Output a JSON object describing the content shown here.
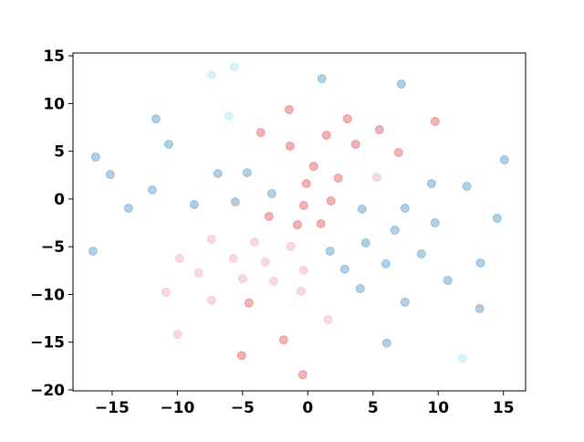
{
  "chart_data": {
    "type": "scatter",
    "xlim": [
      -18,
      16.7
    ],
    "ylim": [
      -20.1,
      15.3
    ],
    "xticks": [
      {
        "value": -15,
        "label": "−15"
      },
      {
        "value": -10,
        "label": "−10"
      },
      {
        "value": -5,
        "label": "−5"
      },
      0,
      5,
      10,
      15
    ],
    "yticks": [
      {
        "value": -20,
        "label": "−20"
      },
      {
        "value": -15,
        "label": "−15"
      },
      {
        "value": -10,
        "label": "−10"
      },
      {
        "value": -5,
        "label": "−5"
      },
      0,
      5,
      10,
      15
    ],
    "alpha": 0.35,
    "series": [
      {
        "color": "#1f77b4",
        "x": [
          -16.26,
          -15.14,
          -13.74,
          -11.92,
          -11.64,
          -10.66,
          -8.71,
          -6.89,
          -5.56,
          -4.65,
          -2.76,
          1.08,
          7.17,
          -16.47,
          1.71,
          2.83,
          4.16,
          4.44,
          6.68,
          7.45,
          9.48,
          9.76,
          12.2,
          15.07,
          14.51,
          8.71,
          10.73,
          13.25,
          13.18,
          5.98,
          4.02,
          7.45,
          6.05
        ],
        "values": [
          4.39,
          2.57,
          -0.96,
          0.95,
          8.4,
          5.73,
          -0.58,
          2.67,
          -0.3,
          2.76,
          0.56,
          12.61,
          12.04,
          -5.46,
          -5.46,
          -7.35,
          -1.06,
          -4.6,
          -3.26,
          -0.96,
          1.61,
          -2.5,
          1.33,
          4.1,
          -2.02,
          -5.75,
          -8.52,
          -6.7,
          -11.48,
          -6.79,
          -9.38,
          -10.81,
          -15.1
        ]
      },
      {
        "color": "#d62728",
        "x": [
          -1.43,
          -3.6,
          1.43,
          -1.36,
          3.04,
          5.49,
          3.67,
          6.96,
          9.76,
          0.45,
          -0.1,
          2.34,
          1.78,
          -0.31,
          -0.8,
          -2.97,
          1.01,
          -4.51,
          -5.07,
          -1.85,
          -0.38
        ],
        "values": [
          9.36,
          6.97,
          6.68,
          5.54,
          8.4,
          7.26,
          5.73,
          4.87,
          8.12,
          3.43,
          1.62,
          2.19,
          -0.2,
          -0.68,
          -2.69,
          -1.82,
          -2.59,
          -10.9,
          -16.4,
          -14.75,
          -18.4
        ]
      },
      {
        "color": "#f08fab",
        "x": [
          5.28,
          -7.38,
          -9.83,
          -4.09,
          -5.7,
          -8.36,
          -3.25,
          -1.29,
          -0.31,
          -5.0,
          -2.62,
          -10.87,
          -7.38,
          -0.52,
          1.57,
          -9.97
        ],
        "values": [
          2.28,
          -4.22,
          -6.22,
          -4.5,
          -6.22,
          -7.75,
          -6.61,
          -4.98,
          -7.47,
          -8.33,
          -8.61,
          -9.76,
          -10.62,
          -9.67,
          -12.63,
          -14.17
        ]
      },
      {
        "color": "#8fdcec",
        "x": [
          -7.38,
          -5.63,
          -6.05,
          11.85
        ],
        "values": [
          12.99,
          13.85,
          8.69,
          -16.7
        ]
      }
    ]
  }
}
